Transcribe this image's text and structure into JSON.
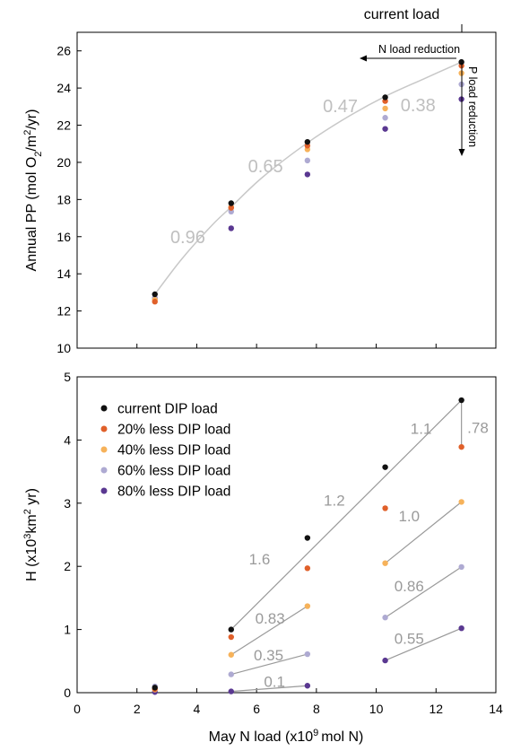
{
  "chart_data": [
    {
      "type": "scatter",
      "title": "",
      "ylabel_parts": {
        "pre": "Annual PP (mol O",
        "sub1": "2",
        "mid": "/m",
        "sup": "2",
        "post": "/yr)"
      },
      "xlim": [
        0,
        14
      ],
      "ylim": [
        10,
        27
      ],
      "yticks": [
        10,
        12,
        14,
        16,
        18,
        20,
        22,
        24,
        26
      ],
      "grid": false,
      "series": [
        {
          "name": "current DIP load",
          "color": "#111111",
          "points": [
            [
              2.6,
              12.9
            ],
            [
              5.15,
              17.8
            ],
            [
              7.7,
              21.1
            ],
            [
              10.3,
              23.5
            ],
            [
              12.85,
              25.4
            ]
          ]
        },
        {
          "name": "20% less DIP load",
          "color": "#e0602a",
          "points": [
            [
              2.6,
              12.5
            ],
            [
              5.15,
              17.55
            ],
            [
              7.7,
              20.9
            ],
            [
              10.3,
              23.3
            ],
            [
              12.85,
              25.2
            ]
          ]
        },
        {
          "name": "40% less DIP load",
          "color": "#f6b25a",
          "points": [
            [
              2.6,
              12.6
            ],
            [
              5.15,
              17.6
            ],
            [
              7.7,
              20.7
            ],
            [
              10.3,
              22.9
            ],
            [
              12.85,
              24.8
            ]
          ]
        },
        {
          "name": "60% less DIP load",
          "color": "#aeaad2",
          "points": [
            [
              2.6,
              12.7
            ],
            [
              5.15,
              17.35
            ],
            [
              7.7,
              20.1
            ],
            [
              10.3,
              22.4
            ],
            [
              12.85,
              24.2
            ]
          ]
        },
        {
          "name": "80% less DIP load",
          "color": "#5a3891",
          "points": [
            [
              2.6,
              12.7
            ],
            [
              5.15,
              16.45
            ],
            [
              7.7,
              19.35
            ],
            [
              10.3,
              21.8
            ],
            [
              12.85,
              23.4
            ]
          ]
        }
      ],
      "fit_curve": [
        [
          2.6,
          12.9
        ],
        [
          3.5,
          14.8
        ],
        [
          4.5,
          16.6
        ],
        [
          5.15,
          17.6
        ],
        [
          6.2,
          19.2
        ],
        [
          7.7,
          21.05
        ],
        [
          9.0,
          22.4
        ],
        [
          10.3,
          23.55
        ],
        [
          11.6,
          24.5
        ],
        [
          12.85,
          25.4
        ]
      ],
      "slope_labels": [
        {
          "text": "0.96",
          "x": 3.7,
          "y": 16.0
        },
        {
          "text": "0.65",
          "x": 6.3,
          "y": 19.8
        },
        {
          "text": "0.47",
          "x": 8.8,
          "y": 23.05
        },
        {
          "text": "0.38",
          "x": 11.4,
          "y": 23.1
        }
      ],
      "annotations": {
        "current_load": "current load",
        "n_reduction": "N load reduction",
        "p_reduction": "P load reduction"
      }
    },
    {
      "type": "scatter",
      "title": "",
      "xlabel_parts": {
        "pre": "May N load (x10",
        "sup": "9",
        "post": "mol N)"
      },
      "ylabel_parts": {
        "pre": "H (x10",
        "sup1": "3",
        "mid": "km",
        "sup2": "2",
        "post": " yr)"
      },
      "xlim": [
        0,
        14
      ],
      "ylim": [
        0,
        5
      ],
      "xticks": [
        0,
        2,
        4,
        6,
        8,
        10,
        12,
        14
      ],
      "yticks": [
        0,
        1,
        2,
        3,
        4,
        5
      ],
      "grid": false,
      "legend_position": "top-left",
      "series": [
        {
          "name": "current DIP load",
          "color": "#111111",
          "points": [
            [
              2.6,
              0.08
            ],
            [
              5.15,
              1.0
            ],
            [
              7.7,
              2.45
            ],
            [
              10.3,
              3.57
            ],
            [
              12.85,
              4.63
            ]
          ]
        },
        {
          "name": "20% less DIP load",
          "color": "#e0602a",
          "points": [
            [
              2.6,
              0.06
            ],
            [
              5.15,
              0.88
            ],
            [
              7.7,
              1.97
            ],
            [
              10.3,
              2.92
            ],
            [
              12.85,
              3.89
            ]
          ]
        },
        {
          "name": "40% less DIP load",
          "color": "#f6b25a",
          "points": [
            [
              2.6,
              0.05
            ],
            [
              5.15,
              0.6
            ],
            [
              7.7,
              1.37
            ],
            [
              10.3,
              2.05
            ],
            [
              12.85,
              3.02
            ]
          ]
        },
        {
          "name": "60% less DIP load",
          "color": "#aeaad2",
          "points": [
            [
              2.6,
              0.1
            ],
            [
              5.15,
              0.29
            ],
            [
              7.7,
              0.61
            ],
            [
              10.3,
              1.19
            ],
            [
              12.85,
              1.99
            ]
          ]
        },
        {
          "name": "80% less DIP load",
          "color": "#5a3891",
          "points": [
            [
              2.6,
              0.01
            ],
            [
              5.15,
              0.02
            ],
            [
              7.7,
              0.11
            ],
            [
              10.3,
              0.51
            ],
            [
              12.85,
              1.02
            ]
          ]
        }
      ],
      "slope_lines": [
        {
          "from": [
            5.15,
            1.0
          ],
          "to": [
            12.85,
            4.63
          ]
        },
        {
          "from": [
            12.85,
            4.63
          ],
          "to": [
            12.85,
            3.89
          ]
        },
        {
          "from": [
            5.15,
            0.6
          ],
          "to": [
            7.7,
            1.37
          ]
        },
        {
          "from": [
            10.3,
            2.05
          ],
          "to": [
            12.85,
            3.02
          ]
        },
        {
          "from": [
            5.15,
            0.29
          ],
          "to": [
            7.7,
            0.61
          ]
        },
        {
          "from": [
            10.3,
            1.19
          ],
          "to": [
            12.85,
            1.99
          ]
        },
        {
          "from": [
            5.15,
            0.02
          ],
          "to": [
            7.7,
            0.11
          ]
        },
        {
          "from": [
            10.3,
            0.51
          ],
          "to": [
            12.85,
            1.02
          ]
        }
      ],
      "slope_labels": [
        {
          "text": "1.6",
          "x": 6.1,
          "y": 2.12
        },
        {
          "text": "1.2",
          "x": 8.6,
          "y": 3.05
        },
        {
          "text": "1.1",
          "x": 11.5,
          "y": 4.18
        },
        {
          "text": ".78",
          "x": 13.4,
          "y": 4.2
        },
        {
          "text": "0.83",
          "x": 6.45,
          "y": 1.18
        },
        {
          "text": "1.0",
          "x": 11.1,
          "y": 2.8
        },
        {
          "text": "0.35",
          "x": 6.4,
          "y": 0.6
        },
        {
          "text": "0.86",
          "x": 11.1,
          "y": 1.69
        },
        {
          "text": "0.1",
          "x": 6.6,
          "y": 0.18
        },
        {
          "text": "0.55",
          "x": 11.1,
          "y": 0.86
        }
      ]
    }
  ]
}
